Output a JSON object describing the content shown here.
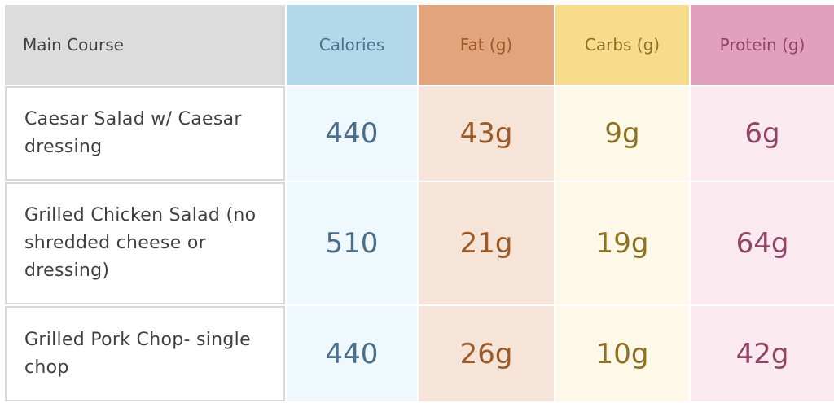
{
  "headers": {
    "main_course": "Main Course",
    "calories": "Calories",
    "fat": "Fat (g)",
    "carbs": "Carbs (g)",
    "protein": "Protein (g)"
  },
  "rows": [
    {
      "name": "Caesar Salad w/ Caesar dressing",
      "calories": "440",
      "fat": "43g",
      "carbs": "9g",
      "protein": "6g"
    },
    {
      "name": "Grilled Chicken Salad (no shredded cheese or dressing)",
      "calories": "510",
      "fat": "21g",
      "carbs": "19g",
      "protein": "64g"
    },
    {
      "name": "Grilled Pork Chop- single chop",
      "calories": "440",
      "fat": "26g",
      "carbs": "10g",
      "protein": "42g"
    }
  ],
  "colors": {
    "header_main_bg": "#dcdcdc",
    "calories_header_bg": "#b3d8e9",
    "fat_header_bg": "#e2a47c",
    "carbs_header_bg": "#f6dc8b",
    "protein_header_bg": "#e1a1bd",
    "calories_cell_bg": "#eff8fc",
    "fat_cell_bg": "#f7e4d8",
    "carbs_cell_bg": "#fdf8e7",
    "protein_cell_bg": "#fbe9f0"
  }
}
